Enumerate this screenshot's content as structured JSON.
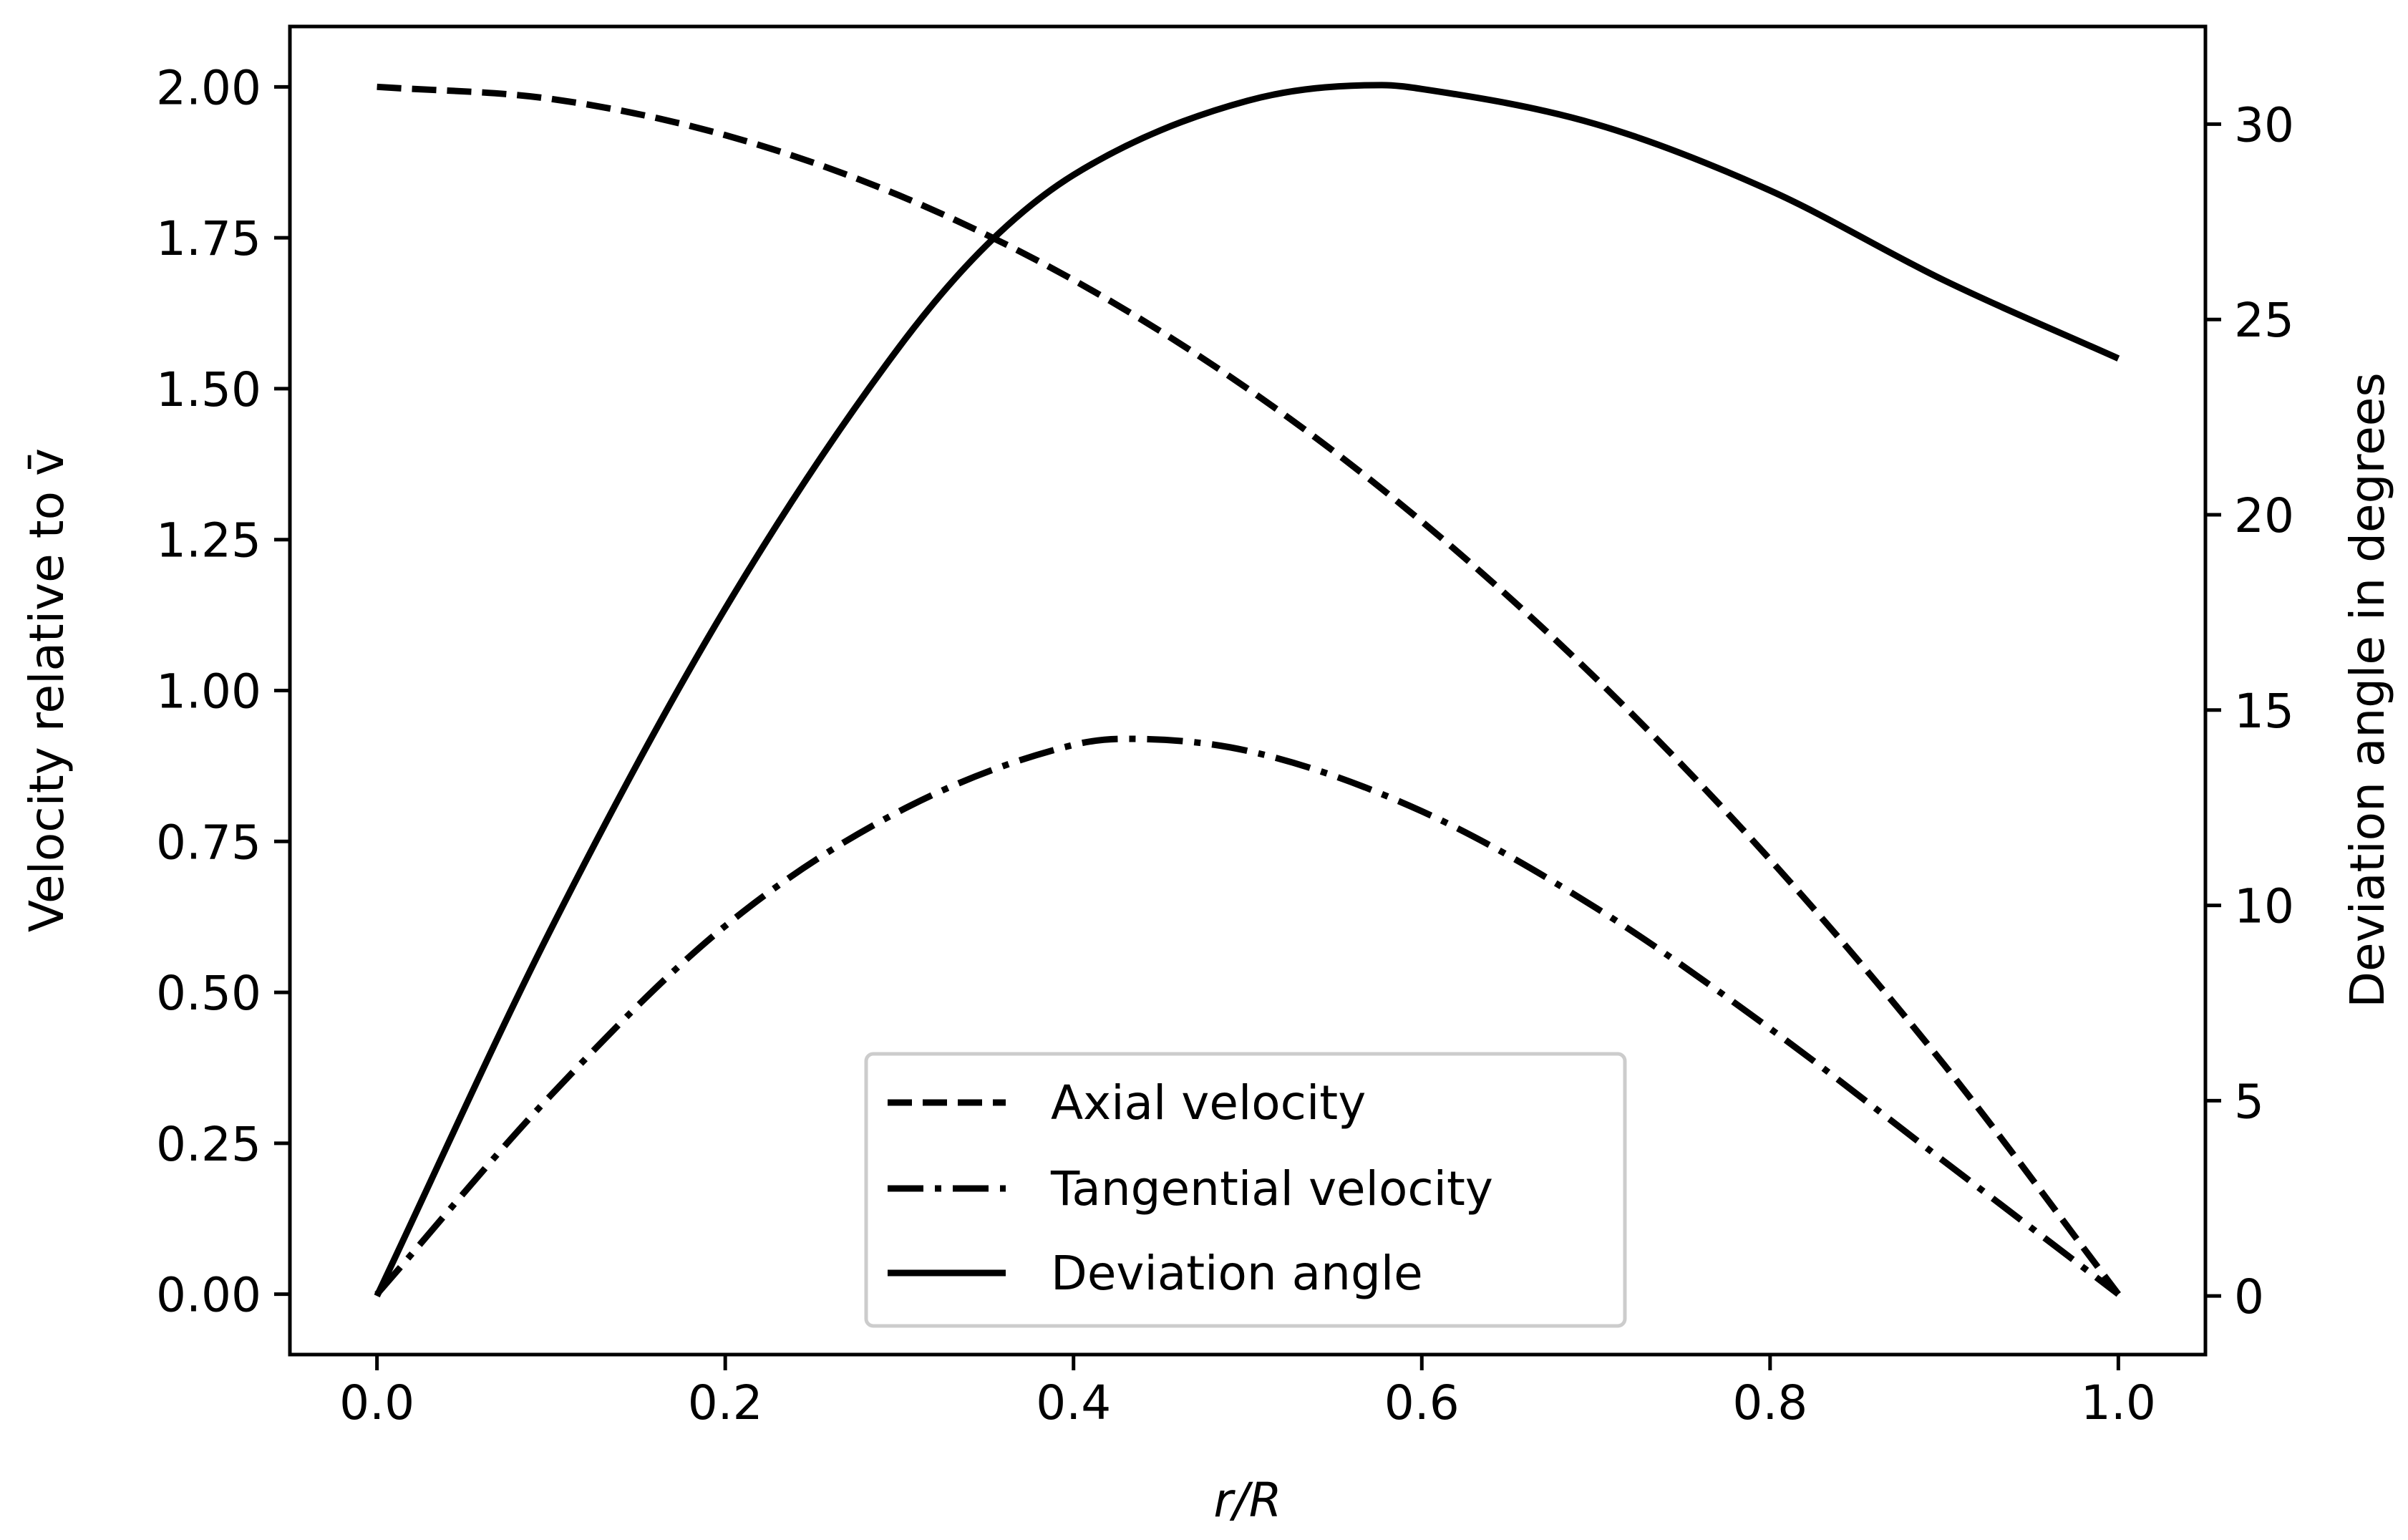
{
  "chart_data": {
    "type": "line",
    "xlabel": "r/R",
    "ylabel_left": "Velocity relative to v̄",
    "ylabel_right": "Deviation angle in degrees",
    "xlim": [
      -0.05,
      1.05
    ],
    "ylim_left": [
      -0.1,
      2.1
    ],
    "ylim_right": [
      -1.5,
      32.5
    ],
    "x_ticks": [
      "0.0",
      "0.2",
      "0.4",
      "0.6",
      "0.8",
      "1.0"
    ],
    "y_ticks_left": [
      "0.00",
      "0.25",
      "0.50",
      "0.75",
      "1.00",
      "1.25",
      "1.50",
      "1.75",
      "2.00"
    ],
    "y_ticks_right": [
      "0",
      "5",
      "10",
      "15",
      "20",
      "25",
      "30"
    ],
    "grid": false,
    "legend_position": "bottom-center",
    "series": [
      {
        "name": "Axial velocity",
        "axis": "left",
        "style": "dashed",
        "x": [
          0.0,
          0.1,
          0.2,
          0.3,
          0.4,
          0.5,
          0.6,
          0.7,
          0.8,
          0.9,
          1.0
        ],
        "values": [
          2.0,
          1.98,
          1.92,
          1.82,
          1.68,
          1.5,
          1.28,
          1.02,
          0.72,
          0.38,
          0.0
        ]
      },
      {
        "name": "Tangential velocity",
        "axis": "left",
        "style": "dashdot",
        "x": [
          0.0,
          0.1,
          0.2,
          0.3,
          0.4,
          0.43,
          0.5,
          0.6,
          0.7,
          0.8,
          0.9,
          1.0
        ],
        "values": [
          0.0,
          0.33,
          0.61,
          0.8,
          0.91,
          0.92,
          0.9,
          0.8,
          0.64,
          0.44,
          0.22,
          0.0
        ]
      },
      {
        "name": "Deviation angle",
        "axis": "right",
        "style": "solid",
        "x": [
          0.0,
          0.1,
          0.2,
          0.3,
          0.35,
          0.4,
          0.5,
          0.577,
          0.6,
          0.7,
          0.8,
          0.9,
          1.0
        ],
        "values": [
          0.0,
          9.4,
          17.6,
          24.3,
          26.9,
          28.7,
          30.6,
          31.0,
          30.9,
          30.0,
          28.3,
          26.0,
          24.0
        ]
      }
    ]
  }
}
